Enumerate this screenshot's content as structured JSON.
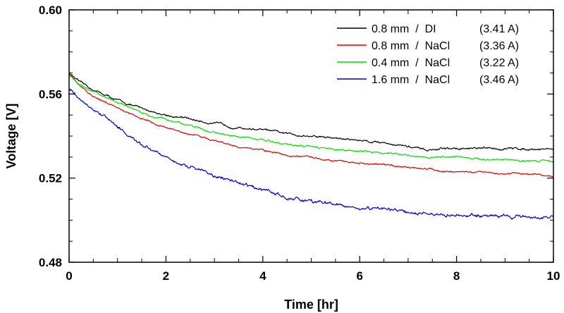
{
  "chart_data": {
    "type": "line",
    "title": "",
    "xlabel": "Time [hr]",
    "ylabel": "Voltage [V]",
    "xlim": [
      0,
      10
    ],
    "ylim": [
      0.48,
      0.6
    ],
    "x_ticks": [
      0,
      2,
      4,
      6,
      8,
      10
    ],
    "x_tick_labels": [
      "0",
      "2",
      "4",
      "6",
      "8",
      "10"
    ],
    "y_ticks": [
      0.48,
      0.52,
      0.56,
      0.6
    ],
    "y_tick_labels": [
      "0.48",
      "0.52",
      "0.56",
      "0.60"
    ],
    "grid": false,
    "legend_position": "top-right",
    "series": [
      {
        "name": "0.8 mm  /  DI",
        "current": "(3.41 A)",
        "color": "#000000",
        "x": [
          0,
          0.25,
          0.5,
          1,
          1.5,
          2,
          2.5,
          3,
          3.5,
          4,
          4.5,
          5,
          5.5,
          6,
          6.5,
          7,
          7.4,
          7.7,
          8,
          8.5,
          9,
          9.5,
          10
        ],
        "y": [
          0.57,
          0.565,
          0.562,
          0.557,
          0.553,
          0.55,
          0.548,
          0.546,
          0.544,
          0.543,
          0.541,
          0.54,
          0.539,
          0.538,
          0.537,
          0.535,
          0.533,
          0.534,
          0.534,
          0.534,
          0.534,
          0.534,
          0.534
        ]
      },
      {
        "name": "0.8 mm  /  NaCl",
        "current": "(3.36 A)",
        "color": "#dd0000",
        "x": [
          0,
          0.25,
          0.5,
          1,
          1.5,
          2,
          2.5,
          3,
          3.5,
          4,
          4.5,
          5,
          5.5,
          6,
          6.5,
          7,
          7.5,
          8,
          8.5,
          9,
          9.5,
          10
        ],
        "y": [
          0.57,
          0.563,
          0.559,
          0.553,
          0.548,
          0.544,
          0.541,
          0.538,
          0.535,
          0.533,
          0.531,
          0.53,
          0.528,
          0.527,
          0.526,
          0.525,
          0.524,
          0.523,
          0.523,
          0.522,
          0.522,
          0.521
        ]
      },
      {
        "name": "0.4 mm  /  NaCl",
        "current": "(3.22 A)",
        "color": "#00dd00",
        "x": [
          0,
          0.25,
          0.5,
          1,
          1.5,
          2,
          2.5,
          3,
          3.5,
          4,
          4.5,
          5,
          5.5,
          6,
          6.5,
          7,
          7.5,
          8,
          8.5,
          9,
          9.5,
          10
        ],
        "y": [
          0.569,
          0.564,
          0.561,
          0.556,
          0.551,
          0.548,
          0.545,
          0.542,
          0.54,
          0.538,
          0.536,
          0.535,
          0.534,
          0.533,
          0.532,
          0.531,
          0.53,
          0.53,
          0.529,
          0.529,
          0.528,
          0.528
        ]
      },
      {
        "name": "1.6 mm  /  NaCl",
        "current": "(3.46 A)",
        "color": "#0000cc",
        "x": [
          0,
          0.25,
          0.5,
          1,
          1.5,
          2,
          2.5,
          3,
          3.5,
          4,
          4.5,
          5,
          5.5,
          6,
          6.5,
          7,
          7.5,
          8,
          8.5,
          9,
          9.5,
          10
        ],
        "y": [
          0.562,
          0.558,
          0.553,
          0.544,
          0.536,
          0.53,
          0.525,
          0.521,
          0.518,
          0.514,
          0.511,
          0.509,
          0.507,
          0.506,
          0.505,
          0.504,
          0.503,
          0.503,
          0.502,
          0.502,
          0.501,
          0.501
        ]
      }
    ]
  }
}
